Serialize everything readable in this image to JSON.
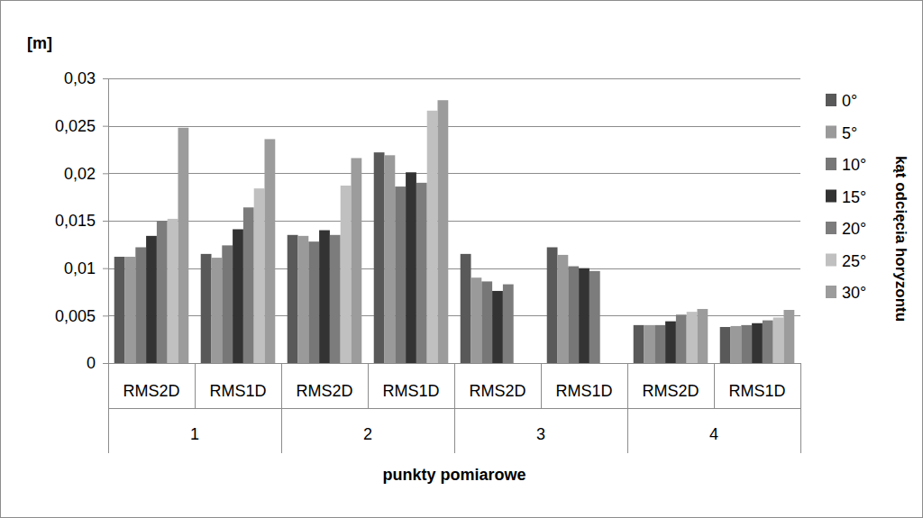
{
  "chart_data": {
    "type": "bar",
    "y_label": "[m]",
    "x_label": "punkty pomiarowe",
    "legend_title": "kąt odcięcia horyzontu",
    "categories": [
      "RMS2D",
      "RMS1D",
      "RMS2D",
      "RMS1D",
      "RMS2D",
      "RMS1D",
      "RMS2D",
      "RMS1D"
    ],
    "groups": [
      "1",
      "2",
      "3",
      "4"
    ],
    "series": [
      {
        "name": "0°",
        "color": "#595959",
        "values": [
          0.0112,
          0.0115,
          0.0135,
          0.0222,
          0.0115,
          0.0122,
          0.004,
          0.0038
        ]
      },
      {
        "name": "5°",
        "color": "#9a9a9a",
        "values": [
          0.0112,
          0.0111,
          0.0134,
          0.0219,
          0.009,
          0.0114,
          0.004,
          0.0039
        ]
      },
      {
        "name": "10°",
        "color": "#777777",
        "values": [
          0.0122,
          0.0124,
          0.0128,
          0.0186,
          0.0086,
          0.0102,
          0.004,
          0.004
        ]
      },
      {
        "name": "15°",
        "color": "#333333",
        "values": [
          0.0134,
          0.0141,
          0.014,
          0.0201,
          0.0076,
          0.01,
          0.0044,
          0.0042
        ]
      },
      {
        "name": "20°",
        "color": "#7c7c7c",
        "values": [
          0.015,
          0.0164,
          0.0135,
          0.019,
          0.0083,
          0.0097,
          0.0051,
          0.0045
        ]
      },
      {
        "name": "25°",
        "color": "#c0c0c0",
        "values": [
          0.0152,
          0.0184,
          0.0187,
          0.0266,
          null,
          null,
          0.0054,
          0.0048
        ]
      },
      {
        "name": "30°",
        "color": "#9c9c9c",
        "values": [
          0.0248,
          0.0236,
          0.0216,
          0.0277,
          null,
          null,
          0.0057,
          0.0056
        ]
      }
    ],
    "ylim": [
      0,
      0.03
    ],
    "yticks": [
      0,
      {
        "value": 0.005,
        "label": "0,005"
      },
      {
        "value": 0.01,
        "label": "0,01"
      },
      {
        "value": 0.015,
        "label": "0,015"
      },
      {
        "value": 0.02,
        "label": "0,02"
      },
      {
        "value": 0.025,
        "label": "0,025"
      },
      {
        "value": 0.03,
        "label": "0,03"
      }
    ],
    "grid": true,
    "legend": "right"
  }
}
